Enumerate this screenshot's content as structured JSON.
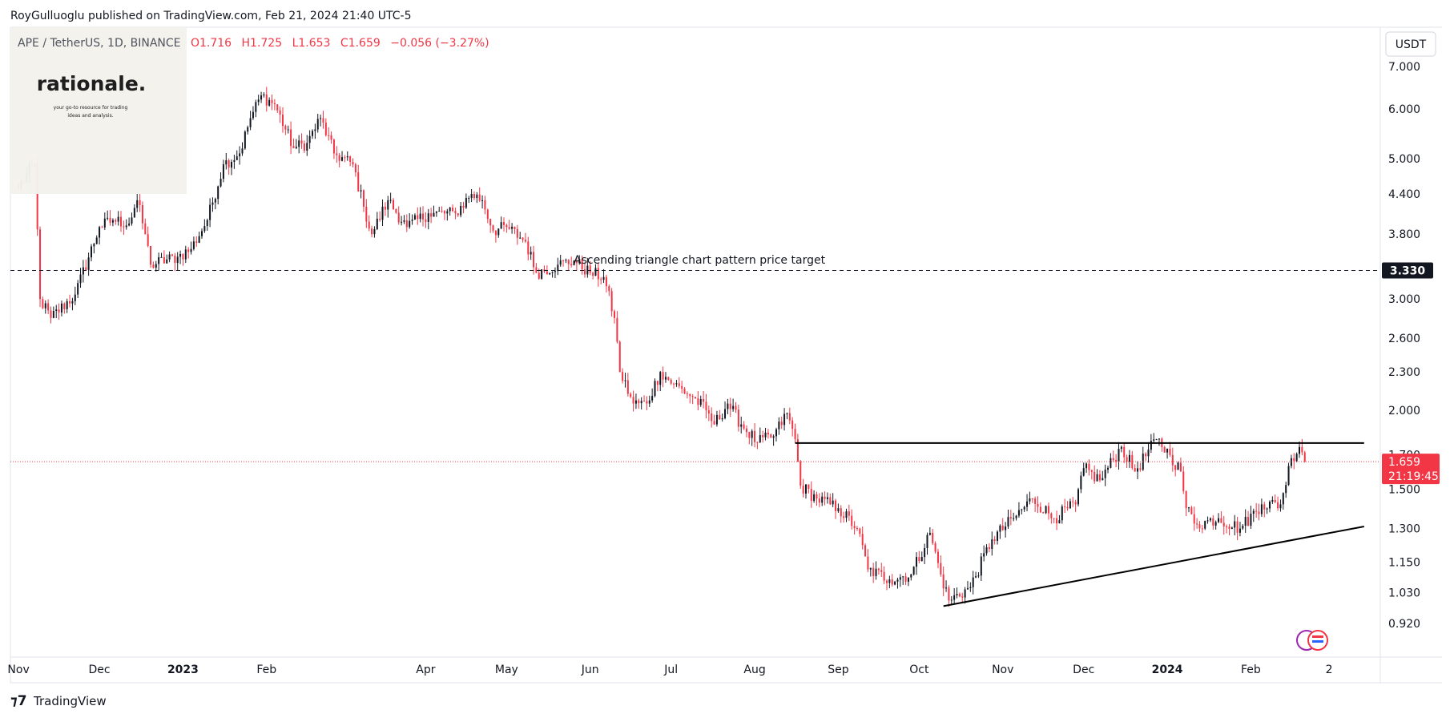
{
  "header": {
    "published": "RoyGulluoglu published on TradingView.com, Feb 21, 2024 21:40 UTC-5"
  },
  "symbol": {
    "name": "APE / TetherUS, 1D, BINANCE",
    "open": "O1.716",
    "high": "H1.725",
    "low": "L1.653",
    "close": "C1.659",
    "change": "−0.056 (−3.27%)"
  },
  "logo": {
    "name": "rationale.",
    "tagline1": "your go-to resource for trading",
    "tagline2": "ideas and analysis."
  },
  "currency_button": "USDT",
  "price_label": {
    "value": "1.659",
    "countdown": "21:19:45"
  },
  "target_label": "3.330",
  "annotation": "Ascending triangle chart pattern price target",
  "footer": {
    "brand": "TradingView"
  },
  "colors": {
    "up": "#131722",
    "down": "#f23645",
    "price_line": "#f23645",
    "target_bg": "#131722"
  },
  "chart_data": {
    "type": "candlestick",
    "scale": "log",
    "y_ticks": [
      7.0,
      6.0,
      5.0,
      4.4,
      3.8,
      3.0,
      2.6,
      2.3,
      2.0,
      1.7,
      1.5,
      1.3,
      1.15,
      1.03,
      0.92
    ],
    "y_tick_labels": [
      "7.000",
      "6.000",
      "5.000",
      "4.400",
      "3.800",
      "3.000",
      "2.600",
      "2.300",
      "2.000",
      "1.700",
      "1.500",
      "1.300",
      "1.150",
      "1.030",
      "0.920"
    ],
    "x_labels": [
      {
        "date": "2022-11-01",
        "label": "Nov",
        "bold": false
      },
      {
        "date": "2022-12-01",
        "label": "Dec",
        "bold": false
      },
      {
        "date": "2023-01-01",
        "label": "2023",
        "bold": true
      },
      {
        "date": "2023-02-01",
        "label": "Feb",
        "bold": false
      },
      {
        "date": "2023-04-01",
        "label": "Apr",
        "bold": false
      },
      {
        "date": "2023-05-01",
        "label": "May",
        "bold": false
      },
      {
        "date": "2023-06-01",
        "label": "Jun",
        "bold": false
      },
      {
        "date": "2023-07-01",
        "label": "Jul",
        "bold": false
      },
      {
        "date": "2023-08-01",
        "label": "Aug",
        "bold": false
      },
      {
        "date": "2023-09-01",
        "label": "Sep",
        "bold": false
      },
      {
        "date": "2023-10-01",
        "label": "Oct",
        "bold": false
      },
      {
        "date": "2023-11-01",
        "label": "Nov",
        "bold": false
      },
      {
        "date": "2023-12-01",
        "label": "Dec",
        "bold": false
      },
      {
        "date": "2024-01-01",
        "label": "2024",
        "bold": true
      },
      {
        "date": "2024-02-01",
        "label": "Feb",
        "bold": false
      },
      {
        "date": "2024-03-01",
        "label": "2",
        "bold": false
      }
    ],
    "x_range": [
      "2022-10-29",
      "2024-03-20"
    ],
    "last_date": "2024-02-21",
    "close_anchors": [
      [
        "2022-11-01",
        4.5
      ],
      [
        "2022-11-07",
        4.9
      ],
      [
        "2022-11-09",
        3.0
      ],
      [
        "2022-11-13",
        2.8
      ],
      [
        "2022-11-22",
        3.05
      ],
      [
        "2022-12-01",
        3.9
      ],
      [
        "2022-12-06",
        4.0
      ],
      [
        "2022-12-12",
        3.95
      ],
      [
        "2022-12-15",
        4.3
      ],
      [
        "2022-12-18",
        3.8
      ],
      [
        "2022-12-20",
        3.4
      ],
      [
        "2022-12-30",
        3.5
      ],
      [
        "2023-01-04",
        3.6
      ],
      [
        "2023-01-10",
        4.0
      ],
      [
        "2023-01-16",
        4.9
      ],
      [
        "2023-01-22",
        5.1
      ],
      [
        "2023-01-26",
        5.8
      ],
      [
        "2023-01-30",
        6.3
      ],
      [
        "2023-02-04",
        6.1
      ],
      [
        "2023-02-11",
        5.2
      ],
      [
        "2023-02-16",
        5.3
      ],
      [
        "2023-02-21",
        5.8
      ],
      [
        "2023-02-26",
        5.1
      ],
      [
        "2023-03-05",
        4.9
      ],
      [
        "2023-03-09",
        4.2
      ],
      [
        "2023-03-12",
        3.8
      ],
      [
        "2023-03-18",
        4.3
      ],
      [
        "2023-03-25",
        3.9
      ],
      [
        "2023-04-02",
        4.1
      ],
      [
        "2023-04-12",
        4.1
      ],
      [
        "2023-04-18",
        4.4
      ],
      [
        "2023-04-22",
        4.3
      ],
      [
        "2023-04-26",
        3.85
      ],
      [
        "2023-05-01",
        3.9
      ],
      [
        "2023-05-08",
        3.7
      ],
      [
        "2023-05-12",
        3.3
      ],
      [
        "2023-05-20",
        3.4
      ],
      [
        "2023-05-26",
        3.45
      ],
      [
        "2023-06-01",
        3.3
      ],
      [
        "2023-06-06",
        3.25
      ],
      [
        "2023-06-10",
        2.8
      ],
      [
        "2023-06-12",
        2.3
      ],
      [
        "2023-06-17",
        2.05
      ],
      [
        "2023-06-22",
        2.05
      ],
      [
        "2023-06-27",
        2.3
      ],
      [
        "2023-07-02",
        2.2
      ],
      [
        "2023-07-09",
        2.1
      ],
      [
        "2023-07-14",
        2.0
      ],
      [
        "2023-07-17",
        1.9
      ],
      [
        "2023-07-22",
        2.05
      ],
      [
        "2023-07-27",
        1.9
      ],
      [
        "2023-08-02",
        1.78
      ],
      [
        "2023-08-08",
        1.82
      ],
      [
        "2023-08-13",
        1.98
      ],
      [
        "2023-08-16",
        1.8
      ],
      [
        "2023-08-18",
        1.52
      ],
      [
        "2023-08-24",
        1.45
      ],
      [
        "2023-09-01",
        1.4
      ],
      [
        "2023-09-08",
        1.3
      ],
      [
        "2023-09-12",
        1.12
      ],
      [
        "2023-09-20",
        1.08
      ],
      [
        "2023-09-28",
        1.1
      ],
      [
        "2023-10-05",
        1.28
      ],
      [
        "2023-10-09",
        1.1
      ],
      [
        "2023-10-12",
        1.0
      ],
      [
        "2023-10-20",
        1.05
      ],
      [
        "2023-10-28",
        1.25
      ],
      [
        "2023-11-05",
        1.35
      ],
      [
        "2023-11-12",
        1.45
      ],
      [
        "2023-11-20",
        1.35
      ],
      [
        "2023-11-28",
        1.42
      ],
      [
        "2023-12-01",
        1.62
      ],
      [
        "2023-12-07",
        1.55
      ],
      [
        "2023-12-15",
        1.75
      ],
      [
        "2023-12-20",
        1.6
      ],
      [
        "2023-12-28",
        1.8
      ],
      [
        "2024-01-02",
        1.7
      ],
      [
        "2024-01-06",
        1.6
      ],
      [
        "2024-01-08",
        1.4
      ],
      [
        "2024-01-12",
        1.32
      ],
      [
        "2024-01-20",
        1.35
      ],
      [
        "2024-01-28",
        1.3
      ],
      [
        "2024-02-05",
        1.42
      ],
      [
        "2024-02-12",
        1.42
      ],
      [
        "2024-02-16",
        1.68
      ],
      [
        "2024-02-19",
        1.75
      ],
      [
        "2024-02-20",
        1.716
      ],
      [
        "2024-02-21",
        1.659
      ]
    ],
    "resistance_line": {
      "from": [
        "2023-08-16",
        1.775
      ],
      "to": [
        "2024-03-14",
        1.775
      ]
    },
    "support_line": {
      "from": [
        "2023-10-10",
        0.98
      ],
      "to": [
        "2024-03-14",
        1.31
      ]
    },
    "target_line": {
      "value": 3.33
    },
    "last_price_line": {
      "value": 1.659
    }
  }
}
